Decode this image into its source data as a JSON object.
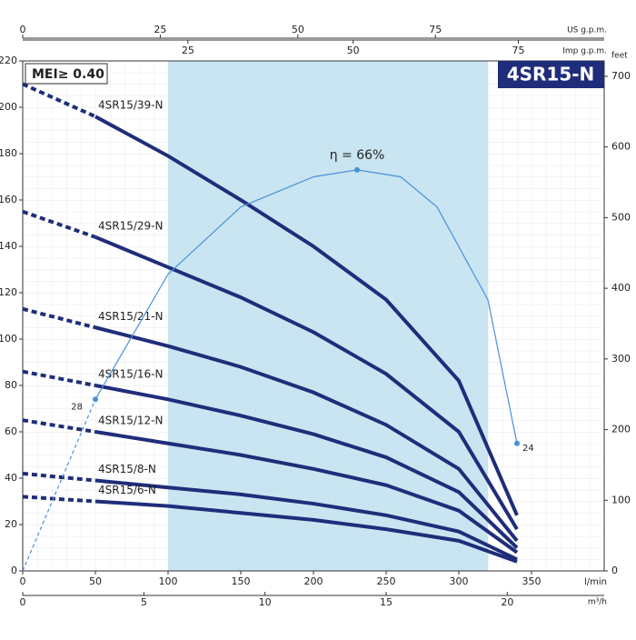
{
  "chart_data": {
    "type": "line",
    "title": "4SR15-N",
    "badge": "MEI≥ 0.40",
    "xlabel": "l/min",
    "xlim": [
      0,
      400
    ],
    "xticks": [
      0,
      50,
      100,
      150,
      200,
      250,
      300,
      350
    ],
    "ylim": [
      0,
      220
    ],
    "yticks": [
      0,
      20,
      40,
      60,
      80,
      100,
      120,
      140,
      160,
      180,
      200,
      220
    ],
    "y2label": "feet",
    "y2lim": [
      0,
      721.8
    ],
    "y2ticks": [
      0,
      100,
      200,
      300,
      400,
      500,
      600,
      700
    ],
    "top_axes": [
      {
        "label": "US g.p.m.",
        "lim": [
          0,
          105.67
        ],
        "ticks": [
          0,
          25,
          50,
          75
        ]
      },
      {
        "label": "Imp g.p.m.",
        "lim": [
          0,
          87.99
        ],
        "ticks": [
          25,
          50,
          75
        ]
      }
    ],
    "bottom_axis2": {
      "label": "m³/h",
      "lim": [
        0,
        24
      ],
      "ticks": [
        0,
        5,
        10,
        15,
        20
      ]
    },
    "shaded_range": [
      100,
      320
    ],
    "shade_color": "#bfe0ee",
    "x": [
      0,
      50,
      100,
      150,
      200,
      250,
      300,
      340
    ],
    "series": [
      {
        "name": "4SR15/39-N",
        "color": "#1f2d7a",
        "values": [
          210,
          196,
          179,
          160,
          140,
          117,
          82,
          24
        ]
      },
      {
        "name": "4SR15/29-N",
        "color": "#1f2d7a",
        "values": [
          155,
          144,
          131,
          118,
          103,
          85,
          60,
          18
        ]
      },
      {
        "name": "4SR15/21-N",
        "color": "#1f2d7a",
        "values": [
          113,
          105,
          97,
          88,
          77,
          63,
          44,
          13
        ]
      },
      {
        "name": "4SR15/16-N",
        "color": "#1f2d7a",
        "values": [
          86,
          80,
          74,
          67,
          59,
          49,
          34,
          10
        ]
      },
      {
        "name": "4SR15/12-N",
        "color": "#1f2d7a",
        "values": [
          65,
          60,
          55,
          50,
          44,
          37,
          26,
          8
        ]
      },
      {
        "name": "4SR15/8-N",
        "color": "#1f2d7a",
        "values": [
          42,
          39,
          36,
          33,
          29,
          24,
          17,
          5
        ]
      },
      {
        "name": "4SR15/6-N",
        "color": "#1f2d7a",
        "values": [
          32,
          30,
          28,
          25,
          22,
          18,
          13,
          4
        ]
      }
    ],
    "efficiency": {
      "color": "#4a90d9",
      "x": [
        0,
        50,
        100,
        150,
        200,
        230,
        260,
        285,
        320,
        340
      ],
      "values": [
        0,
        74,
        128,
        157,
        170,
        173,
        170,
        157,
        117,
        55
      ],
      "labels": [
        "28",
        "η = 66%",
        "24"
      ]
    }
  }
}
